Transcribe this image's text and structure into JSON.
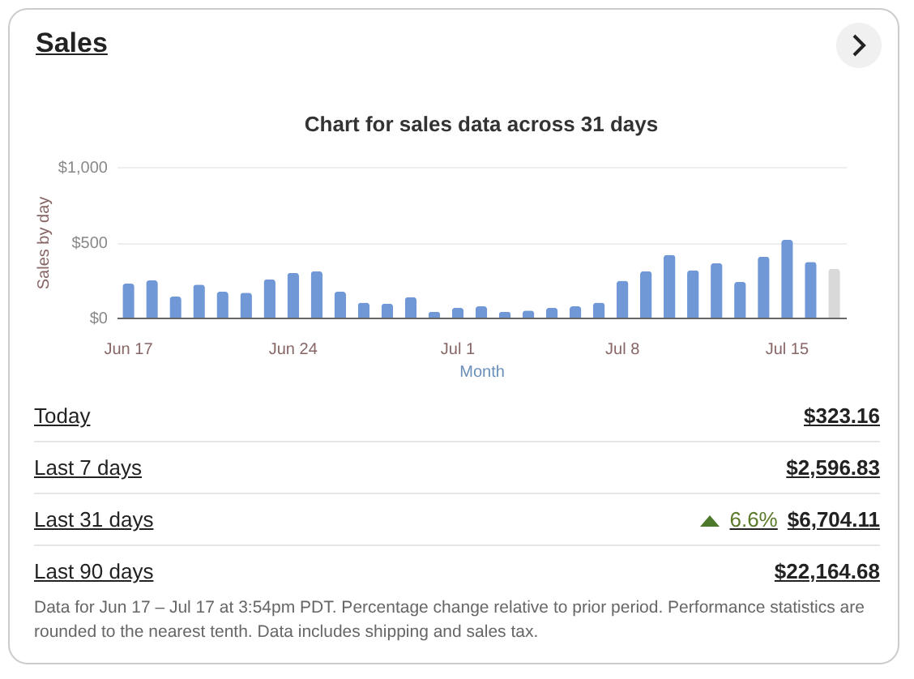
{
  "chart_data": {
    "type": "bar",
    "title": "Sales",
    "subtitle": "Chart for sales data across 31 days",
    "xlabel": "Month",
    "ylabel": "Sales by day",
    "categories": [
      "Jun 17",
      null,
      null,
      null,
      null,
      null,
      null,
      "Jun 24",
      null,
      null,
      null,
      null,
      null,
      null,
      "Jul 1",
      null,
      null,
      null,
      null,
      null,
      null,
      "Jul 8",
      null,
      null,
      null,
      null,
      null,
      null,
      "Jul 15",
      null,
      null
    ],
    "values": [
      226,
      247,
      140,
      219,
      172,
      165,
      254,
      297,
      308,
      172,
      100,
      93,
      136,
      39,
      65,
      75,
      39,
      47,
      65,
      75,
      100,
      244,
      308,
      416,
      315,
      362,
      237,
      405,
      516,
      369,
      323.16
    ],
    "colors": [
      "#7097d6",
      "#7097d6",
      "#7097d6",
      "#7097d6",
      "#7097d6",
      "#7097d6",
      "#7097d6",
      "#7097d6",
      "#7097d6",
      "#7097d6",
      "#7097d6",
      "#7097d6",
      "#7097d6",
      "#7097d6",
      "#7097d6",
      "#7097d6",
      "#7097d6",
      "#7097d6",
      "#7097d6",
      "#7097d6",
      "#7097d6",
      "#7097d6",
      "#7097d6",
      "#7097d6",
      "#7097d6",
      "#7097d6",
      "#7097d6",
      "#7097d6",
      "#7097d6",
      "#7097d6",
      "#d9d9d9"
    ],
    "ylim": [
      0,
      1000
    ],
    "yticks": [
      {
        "value": 0,
        "label": "$0"
      },
      {
        "value": 500,
        "label": "$500"
      },
      {
        "value": 1000,
        "label": "$1,000"
      }
    ],
    "grid": "y",
    "annotations": [
      "Today",
      "$323.16",
      "Last 7 days",
      "$2,596.83",
      "Last 31 days",
      "6.6%",
      "$6,704.11",
      "Last 90 days",
      "$22,164.68",
      "Data for Jun 17 – Jul 17 at 3:54pm PDT. Percentage change relative to prior period. Performance statistics are rounded to the nearest tenth. Data includes shipping and sales tax."
    ]
  }
}
